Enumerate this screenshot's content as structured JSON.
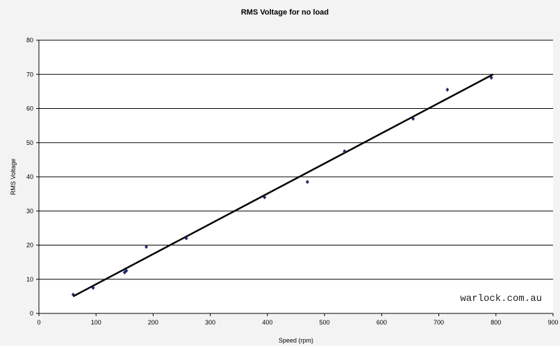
{
  "chart_data": {
    "type": "scatter",
    "title": "RMS Voltage for no load",
    "xlabel": "Speed (rpm)",
    "ylabel": "RMS Voltage",
    "xlim": [
      0,
      900
    ],
    "ylim": [
      0,
      80
    ],
    "xticks": [
      0,
      100,
      200,
      300,
      400,
      500,
      600,
      700,
      800,
      900
    ],
    "yticks": [
      0,
      10,
      20,
      30,
      40,
      50,
      60,
      70,
      80
    ],
    "grid": "horizontal",
    "legend": "none",
    "points": [
      {
        "x": 60,
        "y": 5.5
      },
      {
        "x": 95,
        "y": 7.5
      },
      {
        "x": 150,
        "y": 12
      },
      {
        "x": 153,
        "y": 12.5
      },
      {
        "x": 188,
        "y": 19.5
      },
      {
        "x": 258,
        "y": 22
      },
      {
        "x": 395,
        "y": 34
      },
      {
        "x": 470,
        "y": 38.5
      },
      {
        "x": 535,
        "y": 47.5
      },
      {
        "x": 655,
        "y": 57
      },
      {
        "x": 715,
        "y": 65.5
      },
      {
        "x": 792,
        "y": 69
      }
    ],
    "trendline": {
      "x": [
        60,
        795
      ],
      "y": [
        5,
        70
      ]
    },
    "colors": {
      "points": "#1f2a6b",
      "trendline": "#000000",
      "grid": "#000000",
      "plot_bg": "#ffffff"
    }
  },
  "watermark": "warlock.com.au"
}
